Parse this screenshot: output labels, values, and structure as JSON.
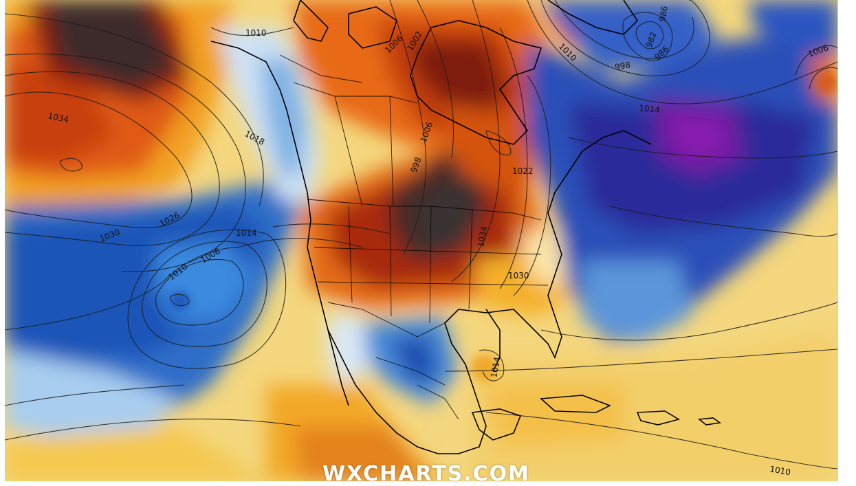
{
  "map": {
    "watermark": "WXCHARTS.COM",
    "palette": {
      "extreme_warm": "#3a2a2a",
      "very_warm": "#7a1a0a",
      "warm": "#d84a10",
      "mild_warm": "#f2a020",
      "near_normal_warm": "#f6d880",
      "near_normal_cool": "#eef4fb",
      "cool": "#8cc0e8",
      "cold": "#2a6cc8",
      "very_cold": "#2a2a9a",
      "extreme_cold": "#7a1aa0"
    },
    "isobar_labels": [
      {
        "id": "p1010-nw",
        "text": "1010"
      },
      {
        "id": "p1034",
        "text": "1034"
      },
      {
        "id": "p1018",
        "text": "1018"
      },
      {
        "id": "p1030-w",
        "text": "1030"
      },
      {
        "id": "p1026",
        "text": "1026"
      },
      {
        "id": "p1014-w",
        "text": "1014"
      },
      {
        "id": "p1010-w",
        "text": "1010"
      },
      {
        "id": "p1006-w",
        "text": "1006"
      },
      {
        "id": "p1006-n",
        "text": "1006"
      },
      {
        "id": "p1002-n",
        "text": "1002"
      },
      {
        "id": "p1006-c",
        "text": "1006"
      },
      {
        "id": "p998-c",
        "text": "998"
      },
      {
        "id": "p1022-e",
        "text": "1022"
      },
      {
        "id": "p1030-e",
        "text": "1030"
      },
      {
        "id": "p1034-e",
        "text": "1034"
      },
      {
        "id": "p1014-gulf",
        "text": "1014"
      },
      {
        "id": "p1010-ne",
        "text": "1010"
      },
      {
        "id": "p998-ne",
        "text": "998"
      },
      {
        "id": "p986-ne",
        "text": "986"
      },
      {
        "id": "p982-ne",
        "text": "982"
      },
      {
        "id": "p986b-ne",
        "text": "986"
      },
      {
        "id": "p1014-atl",
        "text": "1014"
      },
      {
        "id": "p1006-atl",
        "text": "1006"
      },
      {
        "id": "p1010-se",
        "text": "1010"
      }
    ]
  }
}
